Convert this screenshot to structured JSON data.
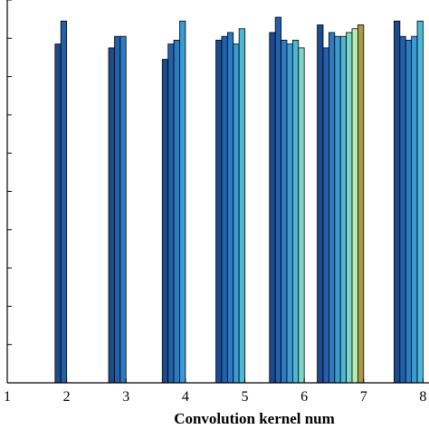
{
  "chart_data": {
    "type": "bar",
    "xlabel": "Convolution kernel num",
    "ylabel": "",
    "x_ticks": [
      "1",
      "2",
      "3",
      "4",
      "5",
      "6",
      "7",
      "8"
    ],
    "xlim": [
      1,
      8.1
    ],
    "ylim": [
      0,
      100
    ],
    "grid": false,
    "groups": [
      {
        "x": 2,
        "values": [
          88.5,
          94.5
        ]
      },
      {
        "x": 3,
        "values": [
          87.5,
          90.5,
          90.5
        ]
      },
      {
        "x": 4,
        "values": [
          84.5,
          88.5,
          89.5,
          94.5
        ]
      },
      {
        "x": 5,
        "values": [
          89.5,
          90.5,
          91.5,
          88.5,
          92.5
        ]
      },
      {
        "x": 6,
        "values": [
          91.5,
          95.5,
          89.5,
          88.5,
          89.5,
          87.5
        ]
      },
      {
        "x": 7,
        "values": [
          93.5,
          87.5,
          91.5,
          90.5,
          90.5,
          91.5,
          92.5,
          93.5
        ]
      },
      {
        "x": 8,
        "values": [
          94.5,
          90.5,
          89.5,
          90.5,
          94.5
        ]
      }
    ],
    "colors": [
      "#1b4b8c",
      "#2360ac",
      "#2c7cc4",
      "#3a9ad4",
      "#4bb8d8",
      "#7ed6c8",
      "#b4ecb0",
      "#a89a46"
    ]
  }
}
